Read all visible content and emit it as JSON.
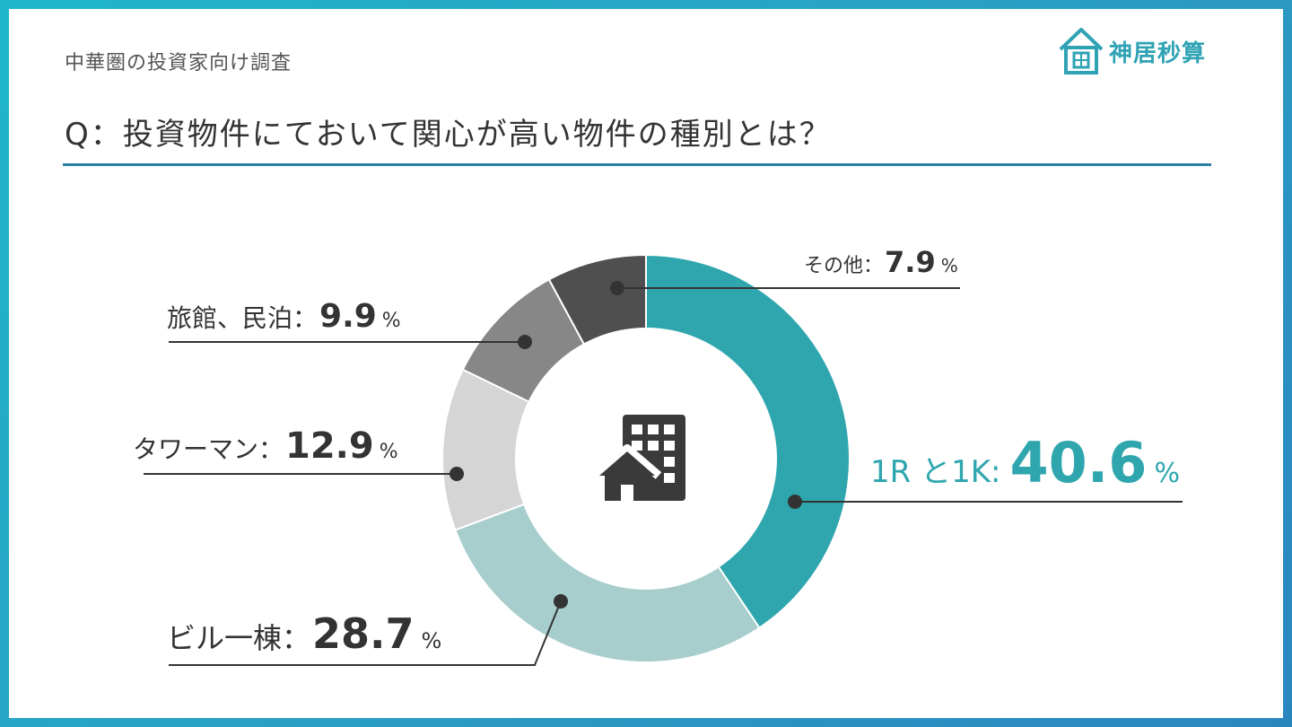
{
  "header": {
    "survey_label": "中華圏の投資家向け調査",
    "question": "Q：投資物件にておいて関心が高い物件の種別とは？",
    "logo_text": "神居秒算"
  },
  "colors": {
    "accent": "#2fa6ae",
    "rule": "#2c7fa0",
    "slices": [
      "#2fa6ae",
      "#a7cdcd",
      "#d6d5d6",
      "#878787",
      "#4f4f4f"
    ]
  },
  "icons": {
    "center": "building-with-house-icon",
    "logo": "house-logo-icon"
  },
  "chart_data": {
    "type": "pie",
    "variant": "donut",
    "title": "",
    "unit": "%",
    "slices": [
      {
        "label": "1R と1K:",
        "value": 40.6,
        "display": "40.6",
        "color": "#2fa6ae"
      },
      {
        "label": "ビル一棟：",
        "value": 28.7,
        "display": "28.7",
        "color": "#a7cdcd"
      },
      {
        "label": "タワーマン：",
        "value": 12.9,
        "display": "12.9",
        "color": "#d6d5d6"
      },
      {
        "label": "旅館、民泊：",
        "value": 9.9,
        "display": "9.9",
        "color": "#878787"
      },
      {
        "label": "その他：",
        "value": 7.9,
        "display": "7.9",
        "color": "#4f4f4f"
      }
    ],
    "start": "12 o'clock",
    "direction": "clockwise"
  }
}
